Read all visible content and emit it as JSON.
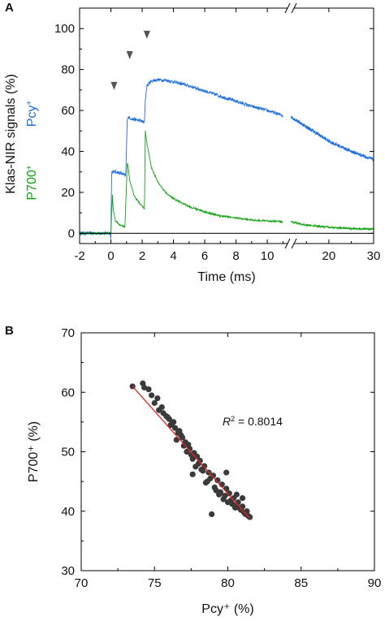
{
  "colors": {
    "pcy": "#1f6fe0",
    "p700": "#13a313",
    "fit": "#e0241b",
    "point": "#3a3a3a"
  },
  "panels": {
    "a": {
      "letter": "A"
    },
    "b": {
      "letter": "B"
    }
  },
  "chart_data": [
    {
      "type": "line",
      "panel": "A",
      "xlabel": "Time (ms)",
      "ylabel": "Klas-NIR signals (%)",
      "y_series_labels": [
        {
          "base": "Pcy",
          "sup": "+",
          "color": "pcy"
        },
        {
          "base": "P700",
          "sup": "+",
          "color": "p700"
        }
      ],
      "xlim_left": [
        -2,
        11.5
      ],
      "xlim_right": [
        11.5,
        30
      ],
      "axis_break": true,
      "x_ticks_left": [
        "-2",
        "0",
        "2",
        "4",
        "6",
        "8",
        "10"
      ],
      "x_ticks_right": [
        "20",
        "30"
      ],
      "ylim": [
        -5,
        110
      ],
      "y_ticks": [
        "0",
        "20",
        "40",
        "60",
        "80",
        "100"
      ],
      "flash_markers_ms": [
        0.1,
        1.1,
        2.2
      ],
      "series": [
        {
          "name": "Pcy+",
          "color": "pcy",
          "x": [
            -2,
            -0.05,
            0.0,
            0.05,
            0.3,
            0.6,
            0.95,
            1.0,
            1.05,
            1.3,
            1.6,
            1.9,
            2.15,
            2.2,
            2.3,
            2.6,
            3.0,
            3.5,
            4,
            5,
            6,
            7,
            8,
            9,
            10,
            11,
            11.5,
            15,
            20,
            25,
            30
          ],
          "y": [
            0,
            0,
            -2,
            30,
            30,
            29.5,
            28,
            42,
            57,
            56,
            55.5,
            55,
            54,
            65,
            72,
            74.5,
            75,
            74.8,
            74,
            72,
            69.5,
            67,
            64.5,
            62,
            60,
            57.5,
            57,
            52,
            45,
            40,
            36
          ]
        },
        {
          "name": "P700+",
          "color": "p700",
          "x": [
            -2,
            -0.05,
            0.0,
            0.1,
            0.15,
            0.3,
            0.6,
            0.9,
            1.05,
            1.1,
            1.2,
            1.5,
            1.9,
            2.15,
            2.2,
            2.3,
            2.6,
            3.0,
            3.5,
            4,
            5,
            6,
            7,
            8,
            9,
            10,
            11.5,
            15,
            20,
            25,
            30
          ],
          "y": [
            0,
            0,
            0,
            19,
            12,
            6,
            4,
            3,
            35,
            33,
            26,
            18,
            14,
            12,
            50,
            44,
            32,
            25,
            20,
            17,
            13,
            10.5,
            8.5,
            7.5,
            6.5,
            6,
            5.5,
            4,
            3,
            2.3,
            2
          ]
        }
      ],
      "arrows_x_ms": [
        0.1,
        1.1,
        2.2
      ]
    },
    {
      "type": "scatter",
      "panel": "B",
      "xlabel": "Pcy⁺ (%)",
      "ylabel": "P700⁺ (%)",
      "xlim": [
        70,
        90
      ],
      "ylim": [
        30,
        70
      ],
      "x_ticks": [
        "70",
        "75",
        "80",
        "85",
        "90"
      ],
      "y_ticks": [
        "30",
        "40",
        "50",
        "60",
        "70"
      ],
      "annotation": {
        "prefix": "R",
        "sup": "2",
        "text": " = 0.8014"
      },
      "fit_line": {
        "x": [
          73.5,
          81.5
        ],
        "y": [
          61,
          38.8
        ]
      },
      "points": {
        "x": [
          73.5,
          74.2,
          74.3,
          74.6,
          75.0,
          75.3,
          75.6,
          75.9,
          76.1,
          76.4,
          76.6,
          76.9,
          77.1,
          77.4,
          77.7,
          77.9,
          78.1,
          78.4,
          78.7,
          79.0,
          79.3,
          79.6,
          79.9,
          80.1,
          80.4,
          80.7,
          81.0,
          81.3,
          81.5,
          75.2,
          75.8,
          76.3,
          76.7,
          77.2,
          77.6,
          78.0,
          78.3,
          78.8,
          79.1,
          79.5,
          79.8,
          80.2,
          80.6,
          80.9,
          81.2,
          74.8,
          75.5,
          76.0,
          76.5,
          77.0,
          77.5,
          78.2,
          78.6,
          79.2,
          79.7,
          80.3,
          80.8,
          81.1,
          81.4,
          76.2,
          76.8,
          77.3,
          77.8,
          78.5,
          79.4,
          80.0,
          80.5,
          78.9,
          77.6,
          79.9,
          80.6,
          81.0
        ],
        "y": [
          61.0,
          61.5,
          60.8,
          60.5,
          58.2,
          57.0,
          56.5,
          55.8,
          54.5,
          54.0,
          53.2,
          52.4,
          51.6,
          50.5,
          49.8,
          49.2,
          48.5,
          47.6,
          46.5,
          46.0,
          45.2,
          44.5,
          43.8,
          43.0,
          42.2,
          41.5,
          40.8,
          40.0,
          39.0,
          59.0,
          56.0,
          55.0,
          53.5,
          50.0,
          48.8,
          48.0,
          46.8,
          45.5,
          44.0,
          43.2,
          42.6,
          41.8,
          41.0,
          40.2,
          39.5,
          59.5,
          57.5,
          55.5,
          52.0,
          51.0,
          49.5,
          47.0,
          45.0,
          43.5,
          42.0,
          41.2,
          40.5,
          39.8,
          39.2,
          54.8,
          52.8,
          51.2,
          47.5,
          44.8,
          42.8,
          41.5,
          40.6,
          39.5,
          46.2,
          46.5,
          42.8,
          42.2
        ]
      }
    }
  ]
}
